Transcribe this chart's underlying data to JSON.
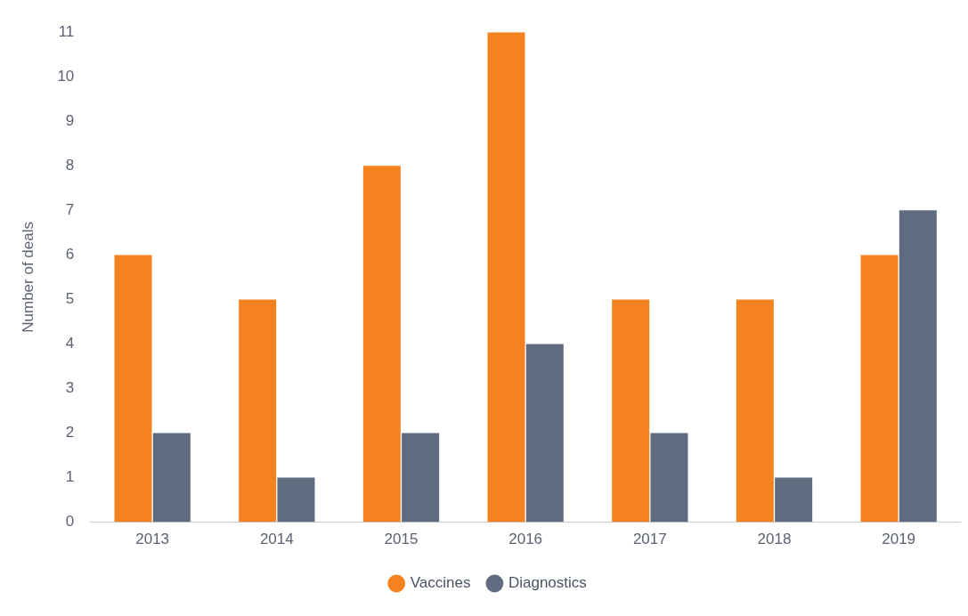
{
  "chart_data": {
    "type": "bar",
    "ylabel": "Number of deals",
    "categories": [
      "2013",
      "2014",
      "2015",
      "2016",
      "2017",
      "2018",
      "2019"
    ],
    "series": [
      {
        "name": "Vaccines",
        "color": "#f58220",
        "values": [
          6,
          5,
          8,
          11,
          5,
          5,
          6
        ]
      },
      {
        "name": "Diagnostics",
        "color": "#5f6b7e",
        "values": [
          2,
          1,
          2,
          4,
          2,
          1,
          7
        ]
      }
    ],
    "ylim": [
      0,
      11
    ],
    "yticks": [
      0,
      1,
      2,
      3,
      4,
      5,
      6,
      7,
      8,
      9,
      10,
      11
    ],
    "grid": false,
    "legend": "bottom"
  }
}
